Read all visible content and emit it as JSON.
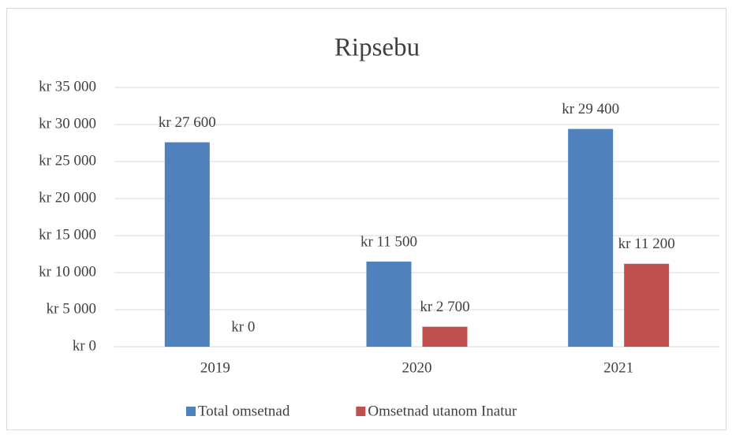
{
  "chart_data": {
    "type": "bar",
    "title": "Ripsebu",
    "categories": [
      "2019",
      "2020",
      "2021"
    ],
    "series": [
      {
        "name": "Total omsetnad",
        "color": "#4f81bd",
        "values": [
          27600,
          11500,
          29400
        ],
        "value_labels": [
          "kr 27 600",
          "kr 11 500",
          "kr 29 400"
        ]
      },
      {
        "name": "Omsetnad utanom Inatur",
        "color": "#c0504d",
        "values": [
          0,
          2700,
          11200
        ],
        "value_labels": [
          "kr 0",
          "kr 2 700",
          "kr 11 200"
        ]
      }
    ],
    "ylim": [
      0,
      35000
    ],
    "yticks": [
      {
        "value": 0,
        "label": "kr 0"
      },
      {
        "value": 5000,
        "label": "kr 5 000"
      },
      {
        "value": 10000,
        "label": "kr 10 000"
      },
      {
        "value": 15000,
        "label": "kr 15 000"
      },
      {
        "value": 20000,
        "label": "kr 20 000"
      },
      {
        "value": 25000,
        "label": "kr 25 000"
      },
      {
        "value": 30000,
        "label": "kr 30 000"
      },
      {
        "value": 35000,
        "label": "kr 35 000"
      }
    ],
    "grid": true,
    "legend": "bottom"
  }
}
